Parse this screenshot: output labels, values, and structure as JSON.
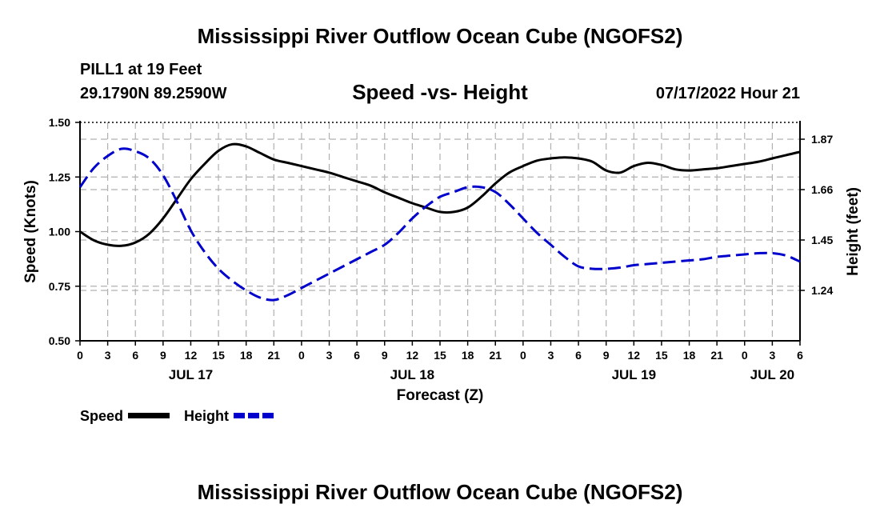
{
  "header": {
    "title": "Mississippi River Outflow Ocean Cube (NGOFS2)",
    "station": "PILL1 at 19 Feet",
    "coords": "29.1790N  89.2590W",
    "subtitle": "Speed -vs- Height",
    "datetime": "07/17/2022 Hour 21",
    "footer_title": "Mississippi River Outflow Ocean Cube (NGOFS2)"
  },
  "legend": {
    "speed_label": "Speed",
    "height_label": "Height"
  },
  "colors": {
    "speed": "#000000",
    "height": "#0000cc",
    "grid": "#b0b0b0"
  },
  "chart_data": {
    "type": "line",
    "title": "Speed -vs- Height",
    "xlabel": "Forecast (Z)",
    "ylabel": "Speed (Knots)",
    "y2label": "Height (feet)",
    "xlim": [
      0,
      78
    ],
    "ylim": [
      0.5,
      1.5
    ],
    "y2lim": [
      1.03,
      1.94
    ],
    "x_tick_values": [
      0,
      3,
      6,
      9,
      12,
      15,
      18,
      21,
      24,
      27,
      30,
      33,
      36,
      39,
      42,
      45,
      48,
      51,
      54,
      57,
      60,
      63,
      66,
      69,
      72,
      75,
      78
    ],
    "x_tick_labels": [
      "0",
      "3",
      "6",
      "9",
      "12",
      "15",
      "18",
      "21",
      "0",
      "3",
      "6",
      "9",
      "12",
      "15",
      "18",
      "21",
      "0",
      "3",
      "6",
      "9",
      "12",
      "15",
      "18",
      "21",
      "0",
      "3",
      "6"
    ],
    "date_labels": [
      {
        "x": 12,
        "label": "JUL 17"
      },
      {
        "x": 36,
        "label": "JUL 18"
      },
      {
        "x": 60,
        "label": "JUL 19"
      },
      {
        "x": 75,
        "label": "JUL 20"
      }
    ],
    "y_ticks": [
      {
        "v": 0.5,
        "label": "0.50"
      },
      {
        "v": 0.75,
        "label": "0.75"
      },
      {
        "v": 1.0,
        "label": "1.00"
      },
      {
        "v": 1.25,
        "label": "1.25"
      },
      {
        "v": 1.5,
        "label": "1.50"
      }
    ],
    "y2_ticks": [
      {
        "v": 1.24,
        "label": "1.24"
      },
      {
        "v": 1.45,
        "label": "1.45"
      },
      {
        "v": 1.66,
        "label": "1.66"
      },
      {
        "v": 1.87,
        "label": "1.87"
      }
    ],
    "series": [
      {
        "name": "Speed",
        "axis": "left",
        "style": "solid",
        "x": [
          0,
          1.5,
          3,
          4.5,
          6,
          7.5,
          9,
          10.5,
          12,
          13.5,
          15,
          16.5,
          18,
          19.5,
          21,
          22.5,
          24,
          25.5,
          27,
          28.5,
          30,
          31.5,
          33,
          34.5,
          36,
          37.5,
          39,
          40.5,
          42,
          43.5,
          45,
          46.5,
          48,
          49.5,
          51,
          52.5,
          54,
          55.5,
          57,
          58.5,
          60,
          61.5,
          63,
          64.5,
          66,
          67.5,
          69,
          70.5,
          72,
          73.5,
          75,
          76.5,
          78
        ],
        "values": [
          1.0,
          0.96,
          0.94,
          0.935,
          0.95,
          0.99,
          1.06,
          1.15,
          1.24,
          1.31,
          1.37,
          1.4,
          1.39,
          1.36,
          1.33,
          1.315,
          1.3,
          1.285,
          1.27,
          1.25,
          1.23,
          1.21,
          1.18,
          1.155,
          1.13,
          1.11,
          1.09,
          1.09,
          1.11,
          1.16,
          1.22,
          1.27,
          1.3,
          1.325,
          1.335,
          1.34,
          1.335,
          1.32,
          1.28,
          1.27,
          1.3,
          1.315,
          1.305,
          1.285,
          1.28,
          1.285,
          1.29,
          1.3,
          1.31,
          1.32,
          1.335,
          1.35,
          1.365
        ]
      },
      {
        "name": "Height",
        "axis": "right",
        "style": "dashed",
        "x": [
          0,
          1.5,
          3,
          4.5,
          6,
          7.5,
          9,
          10.5,
          12,
          13.5,
          15,
          16.5,
          18,
          19.5,
          21,
          22.5,
          24,
          25.5,
          27,
          28.5,
          30,
          31.5,
          33,
          34.5,
          36,
          37.5,
          39,
          40.5,
          42,
          43.5,
          45,
          46.5,
          48,
          49.5,
          51,
          52.5,
          54,
          55.5,
          57,
          58.5,
          60,
          61.5,
          63,
          64.5,
          66,
          67.5,
          69,
          70.5,
          72,
          73.5,
          75,
          76.5,
          78
        ],
        "values": [
          1.67,
          1.75,
          1.8,
          1.83,
          1.82,
          1.79,
          1.72,
          1.61,
          1.49,
          1.4,
          1.33,
          1.28,
          1.24,
          1.21,
          1.2,
          1.22,
          1.25,
          1.28,
          1.31,
          1.34,
          1.37,
          1.4,
          1.43,
          1.48,
          1.54,
          1.59,
          1.63,
          1.65,
          1.67,
          1.67,
          1.65,
          1.6,
          1.54,
          1.48,
          1.43,
          1.38,
          1.34,
          1.33,
          1.33,
          1.335,
          1.345,
          1.35,
          1.355,
          1.36,
          1.365,
          1.37,
          1.38,
          1.385,
          1.39,
          1.395,
          1.395,
          1.385,
          1.36
        ]
      }
    ]
  }
}
